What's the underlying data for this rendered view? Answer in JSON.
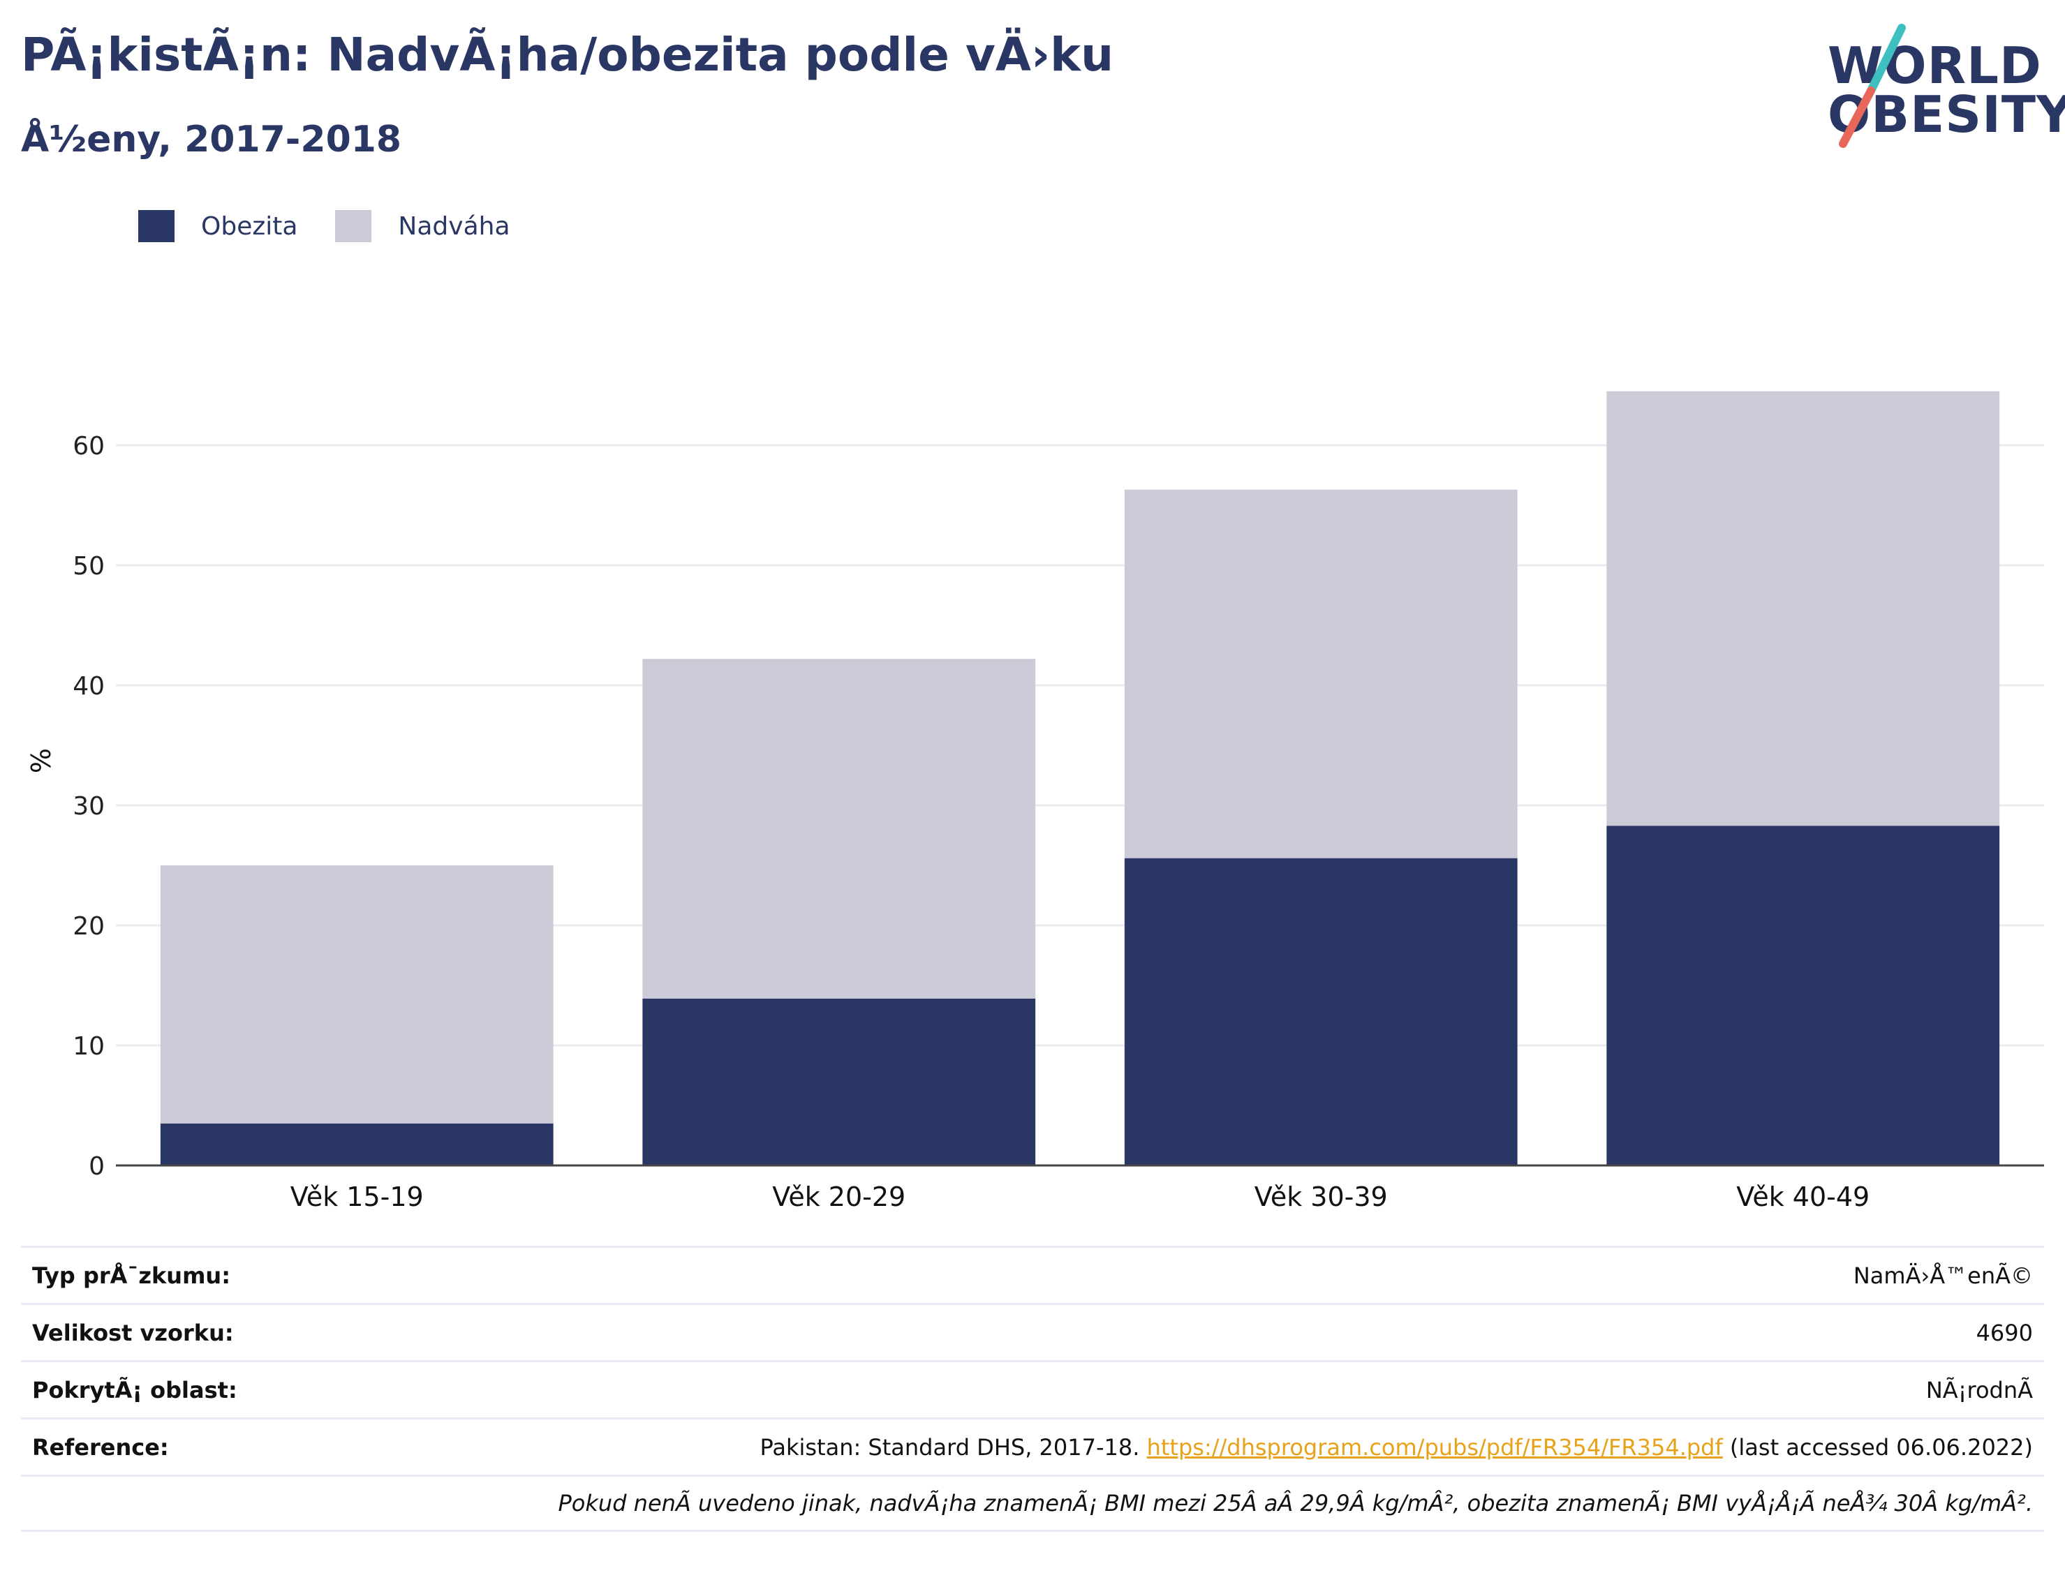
{
  "header": {
    "title": "PÃ¡kistÃ¡n: NadvÃ¡ha/obezita podle vÄ›ku",
    "subtitle": "Å½eny, 2017-2018"
  },
  "logo": {
    "line1": "WORLD",
    "line2": "OBESITY",
    "accent_colors": [
      "#3fc0c0",
      "#e8675a"
    ]
  },
  "legend": {
    "items": [
      {
        "label": "Obezita",
        "color": "#2a3663"
      },
      {
        "label": "Nadváha",
        "color": "#cacbd7"
      }
    ]
  },
  "chart_data": {
    "type": "bar",
    "stacked": true,
    "categories": [
      "Věk 15-19",
      "Věk 20-29",
      "Věk 30-39",
      "Věk 40-49"
    ],
    "series": [
      {
        "name": "Obezita",
        "values": [
          3.5,
          13.9,
          25.6,
          28.3
        ],
        "color": "#2a3663"
      },
      {
        "name": "Nadváha",
        "values": [
          21.5,
          28.3,
          30.7,
          36.2
        ],
        "color": "#cacbd7"
      }
    ],
    "ylabel": "%",
    "ylim": [
      0,
      70
    ],
    "yticks": [
      0,
      10,
      20,
      30,
      40,
      50,
      60
    ],
    "grid": true,
    "legend_position": "top-left"
  },
  "info": {
    "rows": [
      {
        "label": "Typ prÅ¯zkumu:",
        "value": "NamÄ›Å™enÃ©"
      },
      {
        "label": "Velikost vzorku:",
        "value": "4690"
      },
      {
        "label": "PokrytÃ¡ oblast:",
        "value": "NÃ¡rodnÃ"
      }
    ],
    "reference": {
      "label": "Reference:",
      "prefix": "Pakistan: Standard DHS, 2017-18.",
      "link": "https://dhsprogram.com/pubs/pdf/FR354/FR354.pdf",
      "suffix": "(last accessed 06.06.2022)"
    },
    "note": "Pokud nenÃ uvedeno jinak, nadvÃ¡ha znamenÃ¡ BMI mezi 25Â aÂ 29,9Â kg/mÂ², obezita znamenÃ¡ BMI vyÅ¡Å¡Ã neÅ¾ 30Â kg/mÂ²."
  }
}
